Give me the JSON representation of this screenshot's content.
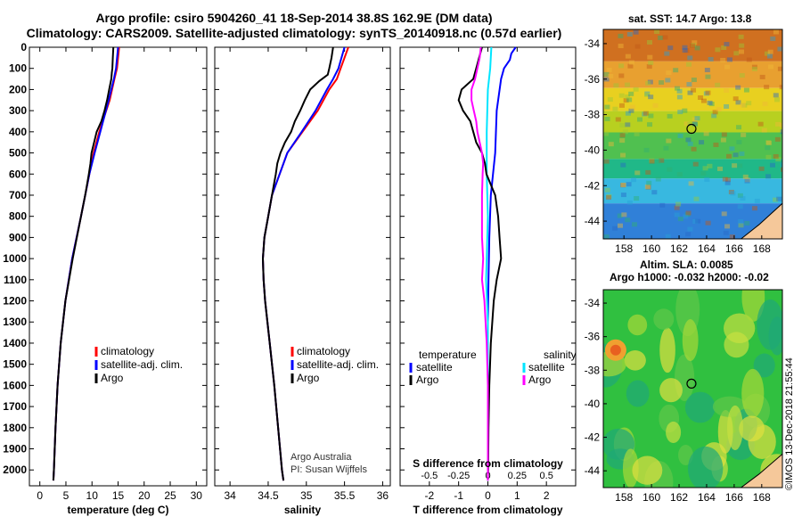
{
  "header": {
    "title_line1": "Argo profile: csiro 5904260_41 18-Sep-2014 38.8S 162.9E (DM data)",
    "title_line2": "Climatology: CARS2009. Satellite-adjusted climatology: synTS_20140918.nc (0.57d earlier)"
  },
  "colors": {
    "climatology": "#ff0000",
    "satellite": "#0000ff",
    "argo": "#000000",
    "salinity_diff": "#00e5ff",
    "argo_s_diff": "#ff00ff"
  },
  "credit": "©IMOS 13-Dec-2018 21:55:44",
  "watermark": {
    "line1": "Argo Australia",
    "line2": "PI: Susan Wijffels"
  },
  "map_sst": {
    "title": "sat. SST: 14.7 Argo: 13.8"
  },
  "map_sla": {
    "title_line1": "Altim. SLA: 0.0085",
    "title_line2": "Argo h1000: -0.032 h2000: -0.02"
  },
  "chart_data": [
    {
      "type": "line",
      "xlabel": "temperature (deg C)",
      "ylabel": "",
      "xlim": [
        -2,
        32
      ],
      "ylim": [
        2075,
        0
      ],
      "xticks": [
        0,
        5,
        10,
        15,
        20,
        25,
        30
      ],
      "yticks": [
        0,
        100,
        200,
        300,
        400,
        500,
        600,
        700,
        800,
        900,
        1000,
        1100,
        1200,
        1300,
        1400,
        1500,
        1600,
        1700,
        1800,
        1900,
        2000
      ],
      "legend": [
        "climatology",
        "satellite-adj. clim.",
        "Argo"
      ],
      "series": [
        {
          "name": "climatology",
          "depth": [
            0,
            100,
            150,
            250,
            400,
            500,
            600,
            800,
            1000,
            1200,
            1400,
            1600,
            1800,
            2000,
            2050
          ],
          "values": [
            15.2,
            14.8,
            14.3,
            13.4,
            11.4,
            10.3,
            9.5,
            7.9,
            6.2,
            4.9,
            4.0,
            3.4,
            3.0,
            2.7,
            2.6
          ]
        },
        {
          "name": "satellite-adj. clim.",
          "depth": [
            0,
            100,
            150,
            250,
            400,
            500,
            600,
            800,
            1000,
            1200,
            1400,
            1600,
            1800,
            2000,
            2050
          ],
          "values": [
            15.0,
            14.6,
            14.2,
            13.2,
            11.6,
            10.5,
            9.5,
            7.9,
            6.2,
            4.9,
            4.0,
            3.4,
            3.0,
            2.7,
            2.6
          ]
        },
        {
          "name": "Argo",
          "depth": [
            0,
            50,
            100,
            120,
            150,
            200,
            250,
            300,
            350,
            400,
            450,
            500,
            550,
            600,
            700,
            800,
            1000,
            1200,
            1400,
            1600,
            1800,
            2000,
            2050
          ],
          "values": [
            14.1,
            14.0,
            13.9,
            13.8,
            13.7,
            13.3,
            12.9,
            12.4,
            11.8,
            10.9,
            10.4,
            9.9,
            9.7,
            9.4,
            8.7,
            7.9,
            6.3,
            4.9,
            4.0,
            3.4,
            3.0,
            2.7,
            2.6
          ]
        }
      ]
    },
    {
      "type": "line",
      "xlabel": "salinity",
      "ylabel": "",
      "xlim": [
        33.8,
        36.1
      ],
      "ylim": [
        2075,
        0
      ],
      "xticks": [
        34,
        34.5,
        35,
        35.5,
        36
      ],
      "legend": [
        "climatology",
        "satellite-adj. clim.",
        "Argo"
      ],
      "series": [
        {
          "name": "climatology",
          "depth": [
            0,
            100,
            150,
            200,
            300,
            400,
            500,
            600,
            700,
            800,
            900,
            1000,
            1100,
            1200,
            1400,
            1600,
            1800,
            2000,
            2050
          ],
          "values": [
            35.55,
            35.45,
            35.4,
            35.3,
            35.15,
            34.95,
            34.75,
            34.65,
            34.55,
            34.5,
            34.45,
            34.43,
            34.44,
            34.46,
            34.52,
            34.58,
            34.63,
            34.68,
            34.7
          ]
        },
        {
          "name": "satellite-adj. clim.",
          "depth": [
            0,
            100,
            150,
            200,
            300,
            400,
            500,
            600,
            700,
            800,
            900,
            1000,
            1100,
            1200,
            1400,
            1600,
            1800,
            2000,
            2050
          ],
          "values": [
            35.5,
            35.42,
            35.35,
            35.27,
            35.12,
            34.94,
            34.75,
            34.65,
            34.55,
            34.5,
            34.45,
            34.43,
            34.44,
            34.46,
            34.52,
            34.58,
            34.63,
            34.68,
            34.7
          ]
        },
        {
          "name": "Argo",
          "depth": [
            0,
            50,
            100,
            130,
            160,
            200,
            250,
            300,
            350,
            400,
            450,
            500,
            550,
            600,
            700,
            800,
            900,
            1000,
            1100,
            1200,
            1400,
            1600,
            1800,
            2000,
            2050
          ],
          "values": [
            35.35,
            35.33,
            35.3,
            35.28,
            35.17,
            35.05,
            34.98,
            34.92,
            34.85,
            34.8,
            34.72,
            34.66,
            34.62,
            34.6,
            34.55,
            34.5,
            34.45,
            34.43,
            34.44,
            34.46,
            34.52,
            34.58,
            34.63,
            34.68,
            34.7
          ]
        }
      ]
    },
    {
      "type": "line",
      "xlabel": "T difference from climatology",
      "xlabel_top": "S difference from climatology",
      "ylabel": "",
      "xlim": [
        -3,
        3
      ],
      "ylim": [
        2075,
        0
      ],
      "xticks": [
        -2,
        -1,
        0,
        1,
        2
      ],
      "xticks_s": [
        -0.5,
        -0.25,
        0,
        0.25,
        0.5
      ],
      "xticks_s_labels": [
        "-0.5",
        "-0.25",
        "0",
        "0.25",
        "0.5"
      ],
      "legend_left_title": "temperature",
      "legend_right_title": "salinity",
      "legend_left": [
        "satellite",
        "Argo"
      ],
      "legend_right": [
        "satellite",
        "Argo"
      ],
      "series": [
        {
          "name": "temperature satellite",
          "unit": "degC",
          "depth": [
            0,
            30,
            60,
            100,
            150,
            300,
            500,
            700,
            900,
            1100,
            1300,
            1600,
            2000,
            2050
          ],
          "values": [
            0.95,
            0.8,
            0.75,
            0.55,
            0.45,
            0.3,
            0.25,
            0.1,
            0.05,
            0.02,
            0.0,
            0.0,
            0.0,
            0.0
          ]
        },
        {
          "name": "salinity satellite",
          "unit": "psu",
          "depth": [
            0,
            100,
            200,
            400,
            600,
            800,
            1000,
            1100,
            1300,
            1600,
            2000,
            2050
          ],
          "values": [
            0.03,
            0.02,
            0.0,
            -0.01,
            -0.01,
            0.0,
            -0.01,
            -0.015,
            0.0,
            0.0,
            0.0,
            0.0
          ]
        },
        {
          "name": "temperature Argo",
          "unit": "degC",
          "depth": [
            0,
            50,
            100,
            150,
            200,
            250,
            300,
            350,
            400,
            450,
            500,
            550,
            600,
            700,
            800,
            900,
            1000,
            1100,
            1200,
            1400,
            1600,
            1800,
            2000,
            2050
          ],
          "values": [
            -0.2,
            -0.3,
            -0.4,
            -0.5,
            -0.9,
            -1.0,
            -0.85,
            -0.6,
            -0.5,
            -0.4,
            -0.2,
            -0.1,
            -0.05,
            0.25,
            0.35,
            0.4,
            0.45,
            0.3,
            0.2,
            0.1,
            0.05,
            0.02,
            0.01,
            0.0
          ]
        },
        {
          "name": "salinity Argo",
          "unit": "psu",
          "depth": [
            0,
            50,
            100,
            150,
            200,
            250,
            300,
            350,
            400,
            450,
            500,
            550,
            600,
            700,
            800,
            900,
            1000,
            1100,
            1200,
            1400,
            1600,
            2000,
            2050
          ],
          "values": [
            -0.06,
            -0.07,
            -0.09,
            -0.11,
            -0.14,
            -0.14,
            -0.12,
            -0.1,
            -0.09,
            -0.07,
            -0.05,
            -0.04,
            -0.045,
            -0.05,
            -0.05,
            -0.05,
            -0.04,
            -0.05,
            -0.03,
            -0.01,
            0.0,
            0.0,
            0.0
          ]
        }
      ]
    },
    {
      "type": "heatmap",
      "title": "sat. SST: 14.7 Argo: 13.8",
      "xlim": [
        156.5,
        169.5
      ],
      "ylim": [
        -45,
        -33.2
      ],
      "xticks": [
        158,
        160,
        162,
        164,
        166,
        168
      ],
      "yticks": [
        -34,
        -36,
        -38,
        -40,
        -42,
        -44
      ],
      "marker": {
        "lon": 162.9,
        "lat": -38.8
      }
    },
    {
      "type": "heatmap",
      "title": "Altim. SLA: 0.0085",
      "xlim": [
        156.5,
        169.5
      ],
      "ylim": [
        -45,
        -33.2
      ],
      "xticks": [
        158,
        160,
        162,
        164,
        166,
        168
      ],
      "yticks": [
        -34,
        -36,
        -38,
        -40,
        -42,
        -44
      ],
      "marker": {
        "lon": 162.9,
        "lat": -38.8
      }
    }
  ]
}
